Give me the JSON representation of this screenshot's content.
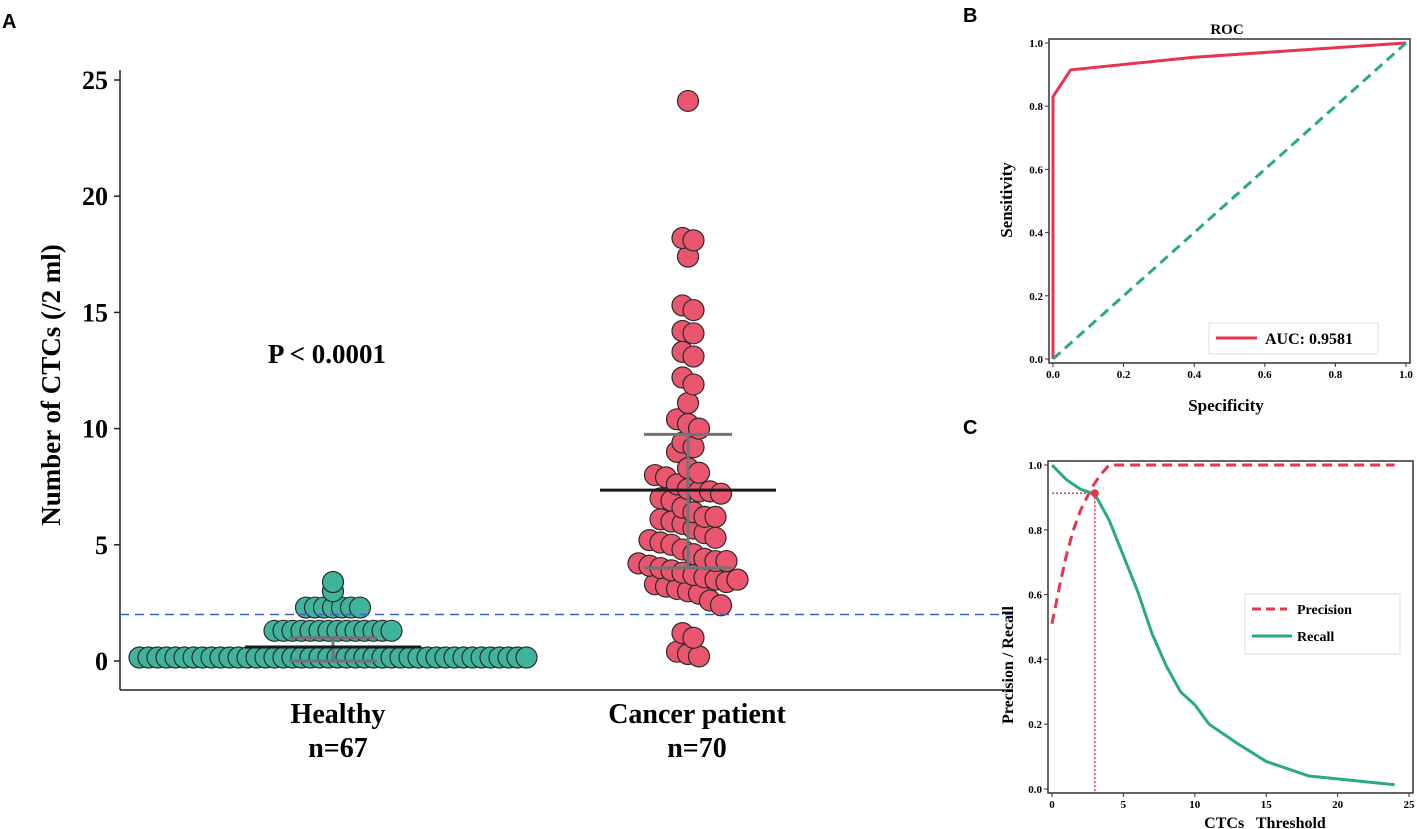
{
  "panel_labels": [
    "A",
    "B",
    "C"
  ],
  "chart_data": [
    {
      "type": "scatter",
      "panel": "A",
      "ylabel": "Number of CTCs (/2 ml)",
      "ylim": [
        0,
        25
      ],
      "yticks": [
        0,
        5,
        10,
        15,
        20,
        25
      ],
      "annotation": "P < 0.0001",
      "threshold_line": 2,
      "colors": {
        "threshold": "#3a62c4",
        "mean": "#1a1a1a",
        "error": "#707478"
      },
      "groups": [
        {
          "label": "Healthy",
          "n_label": "n=67",
          "color": "#3fb39b",
          "mean": 0.6,
          "error_bars": [
            0.0,
            1.0
          ],
          "values": [
            0.15,
            0.15,
            0.15,
            0.15,
            0.15,
            0.15,
            0.15,
            0.15,
            0.15,
            0.15,
            0.15,
            0.15,
            0.15,
            0.15,
            0.15,
            0.15,
            0.15,
            0.15,
            0.15,
            0.15,
            0.15,
            0.15,
            0.15,
            0.15,
            0.15,
            0.15,
            0.15,
            0.15,
            0.15,
            0.15,
            0.15,
            0.15,
            0.15,
            0.15,
            0.15,
            0.15,
            0.15,
            0.15,
            0.15,
            0.15,
            0.15,
            0.15,
            0.15,
            0.15,
            1.3,
            1.3,
            1.3,
            1.3,
            1.3,
            1.3,
            1.3,
            1.3,
            1.3,
            1.3,
            1.3,
            1.3,
            1.3,
            1.3,
            2.3,
            2.3,
            2.3,
            2.3,
            2.3,
            2.3,
            2.3,
            3.0,
            3.4
          ]
        },
        {
          "label": "Cancer patient",
          "n_label": "n=70",
          "color": "#e9566d",
          "mean": 7.35,
          "error_bars": [
            4.0,
            9.75
          ],
          "values": [
            24.1,
            18.2,
            18.1,
            17.4,
            15.3,
            15.1,
            14.2,
            14.1,
            13.3,
            13.1,
            12.2,
            11.9,
            11.1,
            10.4,
            10.2,
            10.0,
            9.4,
            9.2,
            9.0,
            8.3,
            8.1,
            8.0,
            7.9,
            7.6,
            7.4,
            7.3,
            7.3,
            7.2,
            7.0,
            6.9,
            6.6,
            6.4,
            6.2,
            6.2,
            6.1,
            6.0,
            5.9,
            5.7,
            5.5,
            5.3,
            5.2,
            5.1,
            5.0,
            4.8,
            4.6,
            4.4,
            4.3,
            4.3,
            4.2,
            4.1,
            4.0,
            3.9,
            3.8,
            3.7,
            3.6,
            3.5,
            3.4,
            3.3,
            3.2,
            3.1,
            3.0,
            2.9,
            2.6,
            2.4,
            1.2,
            1.0,
            0.4,
            0.3,
            0.2,
            3.5
          ]
        }
      ]
    },
    {
      "type": "line",
      "panel": "B",
      "title": "ROC",
      "xlabel": "Specificity",
      "ylabel": "Sensitivity",
      "xlim": [
        0,
        1
      ],
      "ylim": [
        0,
        1
      ],
      "ticks": [
        0.0,
        0.2,
        0.4,
        0.6,
        0.8,
        1.0
      ],
      "series": [
        {
          "name": "AUC: 0.9581",
          "color": "#e8344e",
          "style": "solid",
          "x": [
            0,
            0,
            0.05,
            0.4,
            1.0
          ],
          "y": [
            0,
            0.83,
            0.915,
            0.955,
            1.0
          ]
        },
        {
          "color": "#2aa98a",
          "style": "dashed",
          "x": [
            0,
            1
          ],
          "y": [
            0,
            1
          ]
        }
      ],
      "legend": "bottom-right"
    },
    {
      "type": "line",
      "panel": "C",
      "xlabel": "CTCs   Threshold",
      "ylabel": "Precision / Recall",
      "xlim": [
        0,
        25
      ],
      "ylim": [
        0,
        1
      ],
      "xticks": [
        0,
        5,
        10,
        15,
        20,
        25
      ],
      "yticks": [
        0.0,
        0.2,
        0.4,
        0.6,
        0.8,
        1.0
      ],
      "series": [
        {
          "name": "Precision",
          "color": "#e8344e",
          "style": "dashed",
          "x": [
            0,
            0.5,
            1,
            1.5,
            2,
            2.5,
            3,
            3.5,
            4,
            24
          ],
          "y": [
            0.51,
            0.62,
            0.72,
            0.8,
            0.86,
            0.905,
            0.945,
            0.975,
            1.0,
            1.0
          ]
        },
        {
          "name": "Recall",
          "color": "#2aa98a",
          "style": "solid",
          "x": [
            0,
            1,
            2,
            3,
            4,
            5,
            6,
            7,
            8,
            9,
            10,
            11,
            13,
            15,
            18,
            24
          ],
          "y": [
            1.0,
            0.955,
            0.925,
            0.91,
            0.83,
            0.72,
            0.61,
            0.48,
            0.38,
            0.3,
            0.26,
            0.2,
            0.14,
            0.085,
            0.04,
            0.013
          ]
        }
      ],
      "crossover_point": {
        "x": 3,
        "y": 0.913,
        "color": "#e8344e"
      },
      "legend": "center-right"
    }
  ]
}
